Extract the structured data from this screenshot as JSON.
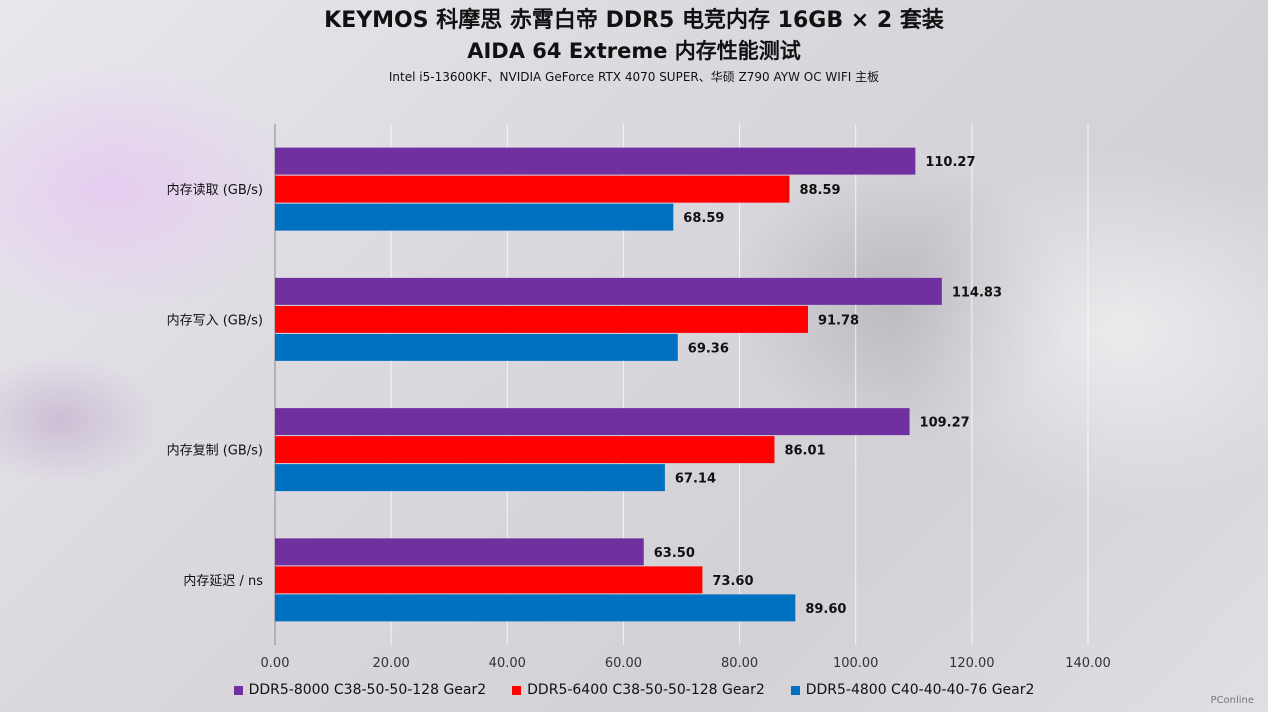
{
  "title": "KEYMOS 科摩思 赤霄白帝 DDR5 电竞内存 16GB × 2 套装",
  "subtitle": "AIDA 64 Extreme 内存性能测试",
  "config_line": "Intel i5-13600KF、NVIDIA GeForce RTX 4070 SUPER、华硕 Z790 AYW OC WIFI 主板",
  "watermark": "PConline",
  "colors": {
    "ddr5_8000": "#7030a0",
    "ddr5_6400": "#ff0000",
    "ddr5_4800": "#0070c0"
  },
  "chart_data": {
    "type": "bar",
    "orientation": "horizontal",
    "categories": [
      "内存读取 (GB/s)",
      "内存写入 (GB/s)",
      "内存复制 (GB/s)",
      "内存延迟 / ns"
    ],
    "series": [
      {
        "name": "DDR5-8000 C38-50-50-128 Gear2",
        "values": [
          110.27,
          114.83,
          109.27,
          63.5
        ],
        "labels": [
          "110.27",
          "114.83",
          "109.27",
          "63.50"
        ]
      },
      {
        "name": "DDR5-6400 C38-50-50-128 Gear2",
        "values": [
          88.59,
          91.78,
          86.01,
          73.6
        ],
        "labels": [
          "88.59",
          "91.78",
          "86.01",
          "73.60"
        ]
      },
      {
        "name": "DDR5-4800 C40-40-40-76 Gear2",
        "values": [
          68.59,
          69.36,
          67.14,
          89.6
        ],
        "labels": [
          "68.59",
          "69.36",
          "67.14",
          "89.60"
        ]
      }
    ],
    "xlim": [
      0,
      140
    ],
    "xticks": [
      "0.00",
      "20.00",
      "40.00",
      "60.00",
      "80.00",
      "100.00",
      "120.00",
      "140.00"
    ],
    "grid": true,
    "legend_position": "bottom"
  }
}
